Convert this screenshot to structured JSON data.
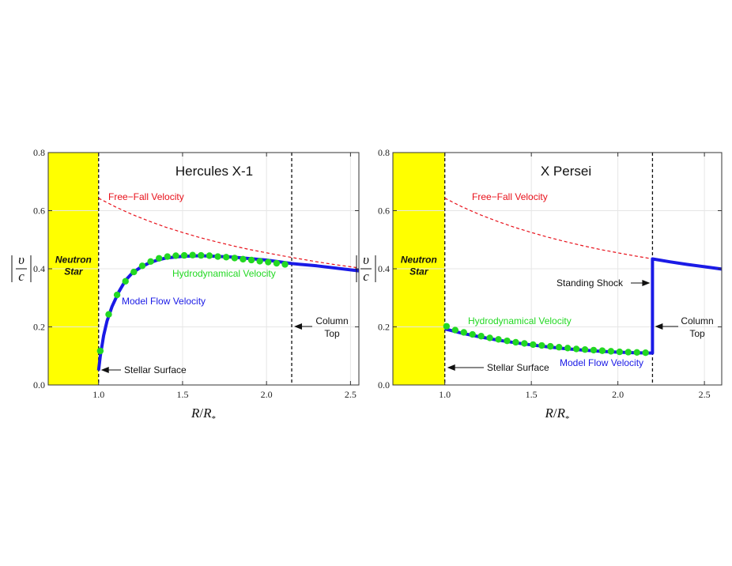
{
  "chart_data": [
    {
      "type": "line",
      "title": "Hercules X-1",
      "xlabel_main": "R",
      "xlabel_sep": "/",
      "xlabel_sub_main": "R",
      "xlabel_sub": "*",
      "ylabel_top": "υ",
      "ylabel_bottom": "c",
      "xlim": [
        0.7,
        2.55
      ],
      "ylim": [
        0.0,
        0.8
      ],
      "xticks": [
        1.0,
        1.5,
        2.0,
        2.5
      ],
      "xtick_labels": [
        "1.0",
        "1.5",
        "2.0",
        "2.5"
      ],
      "yticks": [
        0.0,
        0.2,
        0.4,
        0.6,
        0.8
      ],
      "ytick_labels": [
        "0.0",
        "0.2",
        "0.4",
        "0.6",
        "0.8"
      ],
      "grid": true,
      "neutron_star": {
        "x_start": 0.7,
        "x_end": 1.0,
        "label_line1": "Neutron",
        "label_line2": "Star",
        "color": "#ffff00"
      },
      "vlines": [
        1.0,
        2.15
      ],
      "series": [
        {
          "name": "Free−Fall Velocity",
          "style": "dashed",
          "color": "#e8101a",
          "x": [
            1.0,
            1.1,
            1.2,
            1.3,
            1.4,
            1.5,
            1.6,
            1.7,
            1.8,
            1.9,
            2.0,
            2.1,
            2.2,
            2.3,
            2.4,
            2.55
          ],
          "y": [
            0.643,
            0.613,
            0.587,
            0.564,
            0.543,
            0.525,
            0.508,
            0.493,
            0.479,
            0.466,
            0.455,
            0.444,
            0.434,
            0.424,
            0.415,
            0.403
          ]
        },
        {
          "name": "Model Flow Velocity",
          "style": "solid",
          "color": "#1a1ae6",
          "x": [
            1.0,
            1.01,
            1.03,
            1.05,
            1.08,
            1.12,
            1.16,
            1.2,
            1.25,
            1.3,
            1.35,
            1.4,
            1.5,
            1.6,
            1.7,
            1.8,
            1.9,
            2.0,
            2.1,
            2.15,
            2.3,
            2.55
          ],
          "y": [
            0.05,
            0.1,
            0.17,
            0.22,
            0.27,
            0.32,
            0.36,
            0.385,
            0.405,
            0.42,
            0.43,
            0.437,
            0.443,
            0.445,
            0.443,
            0.44,
            0.435,
            0.43,
            0.422,
            0.418,
            0.41,
            0.393
          ]
        },
        {
          "name": "Hydrodynamical Velocity",
          "style": "markers",
          "color": "#22d822",
          "x": [
            1.01,
            1.06,
            1.11,
            1.16,
            1.21,
            1.26,
            1.31,
            1.36,
            1.41,
            1.46,
            1.51,
            1.56,
            1.61,
            1.66,
            1.71,
            1.76,
            1.81,
            1.86,
            1.91,
            1.96,
            2.01,
            2.06,
            2.11
          ],
          "y": [
            0.117,
            0.243,
            0.31,
            0.357,
            0.389,
            0.41,
            0.425,
            0.436,
            0.442,
            0.445,
            0.446,
            0.447,
            0.446,
            0.445,
            0.442,
            0.44,
            0.437,
            0.433,
            0.43,
            0.426,
            0.423,
            0.419,
            0.415
          ]
        }
      ],
      "annotations": {
        "free_fall": "Free−Fall Velocity",
        "hydro": "Hydrodynamical Velocity",
        "model": "Model Flow Velocity",
        "stellar_surface": "Stellar Surface",
        "column_line1": "Column",
        "column_line2": "Top"
      }
    },
    {
      "type": "line",
      "title": "X Persei",
      "xlabel_main": "R",
      "xlabel_sep": "/",
      "xlabel_sub_main": "R",
      "xlabel_sub": "*",
      "ylabel_top": "υ",
      "ylabel_bottom": "c",
      "xlim": [
        0.7,
        2.6
      ],
      "ylim": [
        0.0,
        0.8
      ],
      "xticks": [
        1.0,
        1.5,
        2.0,
        2.5
      ],
      "xtick_labels": [
        "1.0",
        "1.5",
        "2.0",
        "2.5"
      ],
      "yticks": [
        0.0,
        0.2,
        0.4,
        0.6,
        0.8
      ],
      "ytick_labels": [
        "0.0",
        "0.2",
        "0.4",
        "0.6",
        "0.8"
      ],
      "grid": true,
      "neutron_star": {
        "x_start": 0.7,
        "x_end": 1.0,
        "label_line1": "Neutron",
        "label_line2": "Star",
        "color": "#ffff00"
      },
      "vlines": [
        1.0,
        2.2
      ],
      "series": [
        {
          "name": "Free−Fall Velocity",
          "style": "dashed",
          "color": "#e8101a",
          "x": [
            1.0,
            1.1,
            1.2,
            1.3,
            1.4,
            1.5,
            1.6,
            1.7,
            1.8,
            1.9,
            2.0,
            2.1,
            2.2,
            2.3,
            2.4,
            2.5,
            2.6
          ],
          "y": [
            0.643,
            0.613,
            0.587,
            0.564,
            0.543,
            0.525,
            0.508,
            0.493,
            0.479,
            0.466,
            0.455,
            0.444,
            0.434,
            0.424,
            0.415,
            0.407,
            0.399
          ]
        },
        {
          "name": "Model Flow Velocity",
          "style": "solid",
          "color": "#1a1ae6",
          "x": [
            1.0,
            1.1,
            1.2,
            1.3,
            1.4,
            1.5,
            1.6,
            1.7,
            1.8,
            1.9,
            2.0,
            2.1,
            2.2,
            2.2,
            2.3,
            2.4,
            2.5,
            2.6
          ],
          "y": [
            0.193,
            0.178,
            0.166,
            0.155,
            0.146,
            0.138,
            0.131,
            0.125,
            0.12,
            0.116,
            0.113,
            0.111,
            0.11,
            0.434,
            0.424,
            0.415,
            0.407,
            0.399
          ]
        },
        {
          "name": "Hydrodynamical Velocity",
          "style": "markers",
          "color": "#22d822",
          "x": [
            1.01,
            1.06,
            1.11,
            1.16,
            1.21,
            1.26,
            1.31,
            1.36,
            1.41,
            1.46,
            1.51,
            1.56,
            1.61,
            1.66,
            1.71,
            1.76,
            1.81,
            1.86,
            1.91,
            1.96,
            2.01,
            2.06,
            2.11,
            2.16
          ],
          "y": [
            0.202,
            0.189,
            0.181,
            0.174,
            0.168,
            0.162,
            0.157,
            0.152,
            0.147,
            0.143,
            0.139,
            0.136,
            0.133,
            0.13,
            0.127,
            0.124,
            0.122,
            0.12,
            0.118,
            0.116,
            0.114,
            0.113,
            0.112,
            0.111
          ]
        }
      ],
      "annotations": {
        "free_fall": "Free−Fall Velocity",
        "hydro": "Hydrodynamical Velocity",
        "model": "Model Flow Velocity",
        "stellar_surface": "Stellar Surface",
        "standing_shock": "Standing Shock",
        "column_line1": "Column",
        "column_line2": "Top"
      }
    }
  ]
}
